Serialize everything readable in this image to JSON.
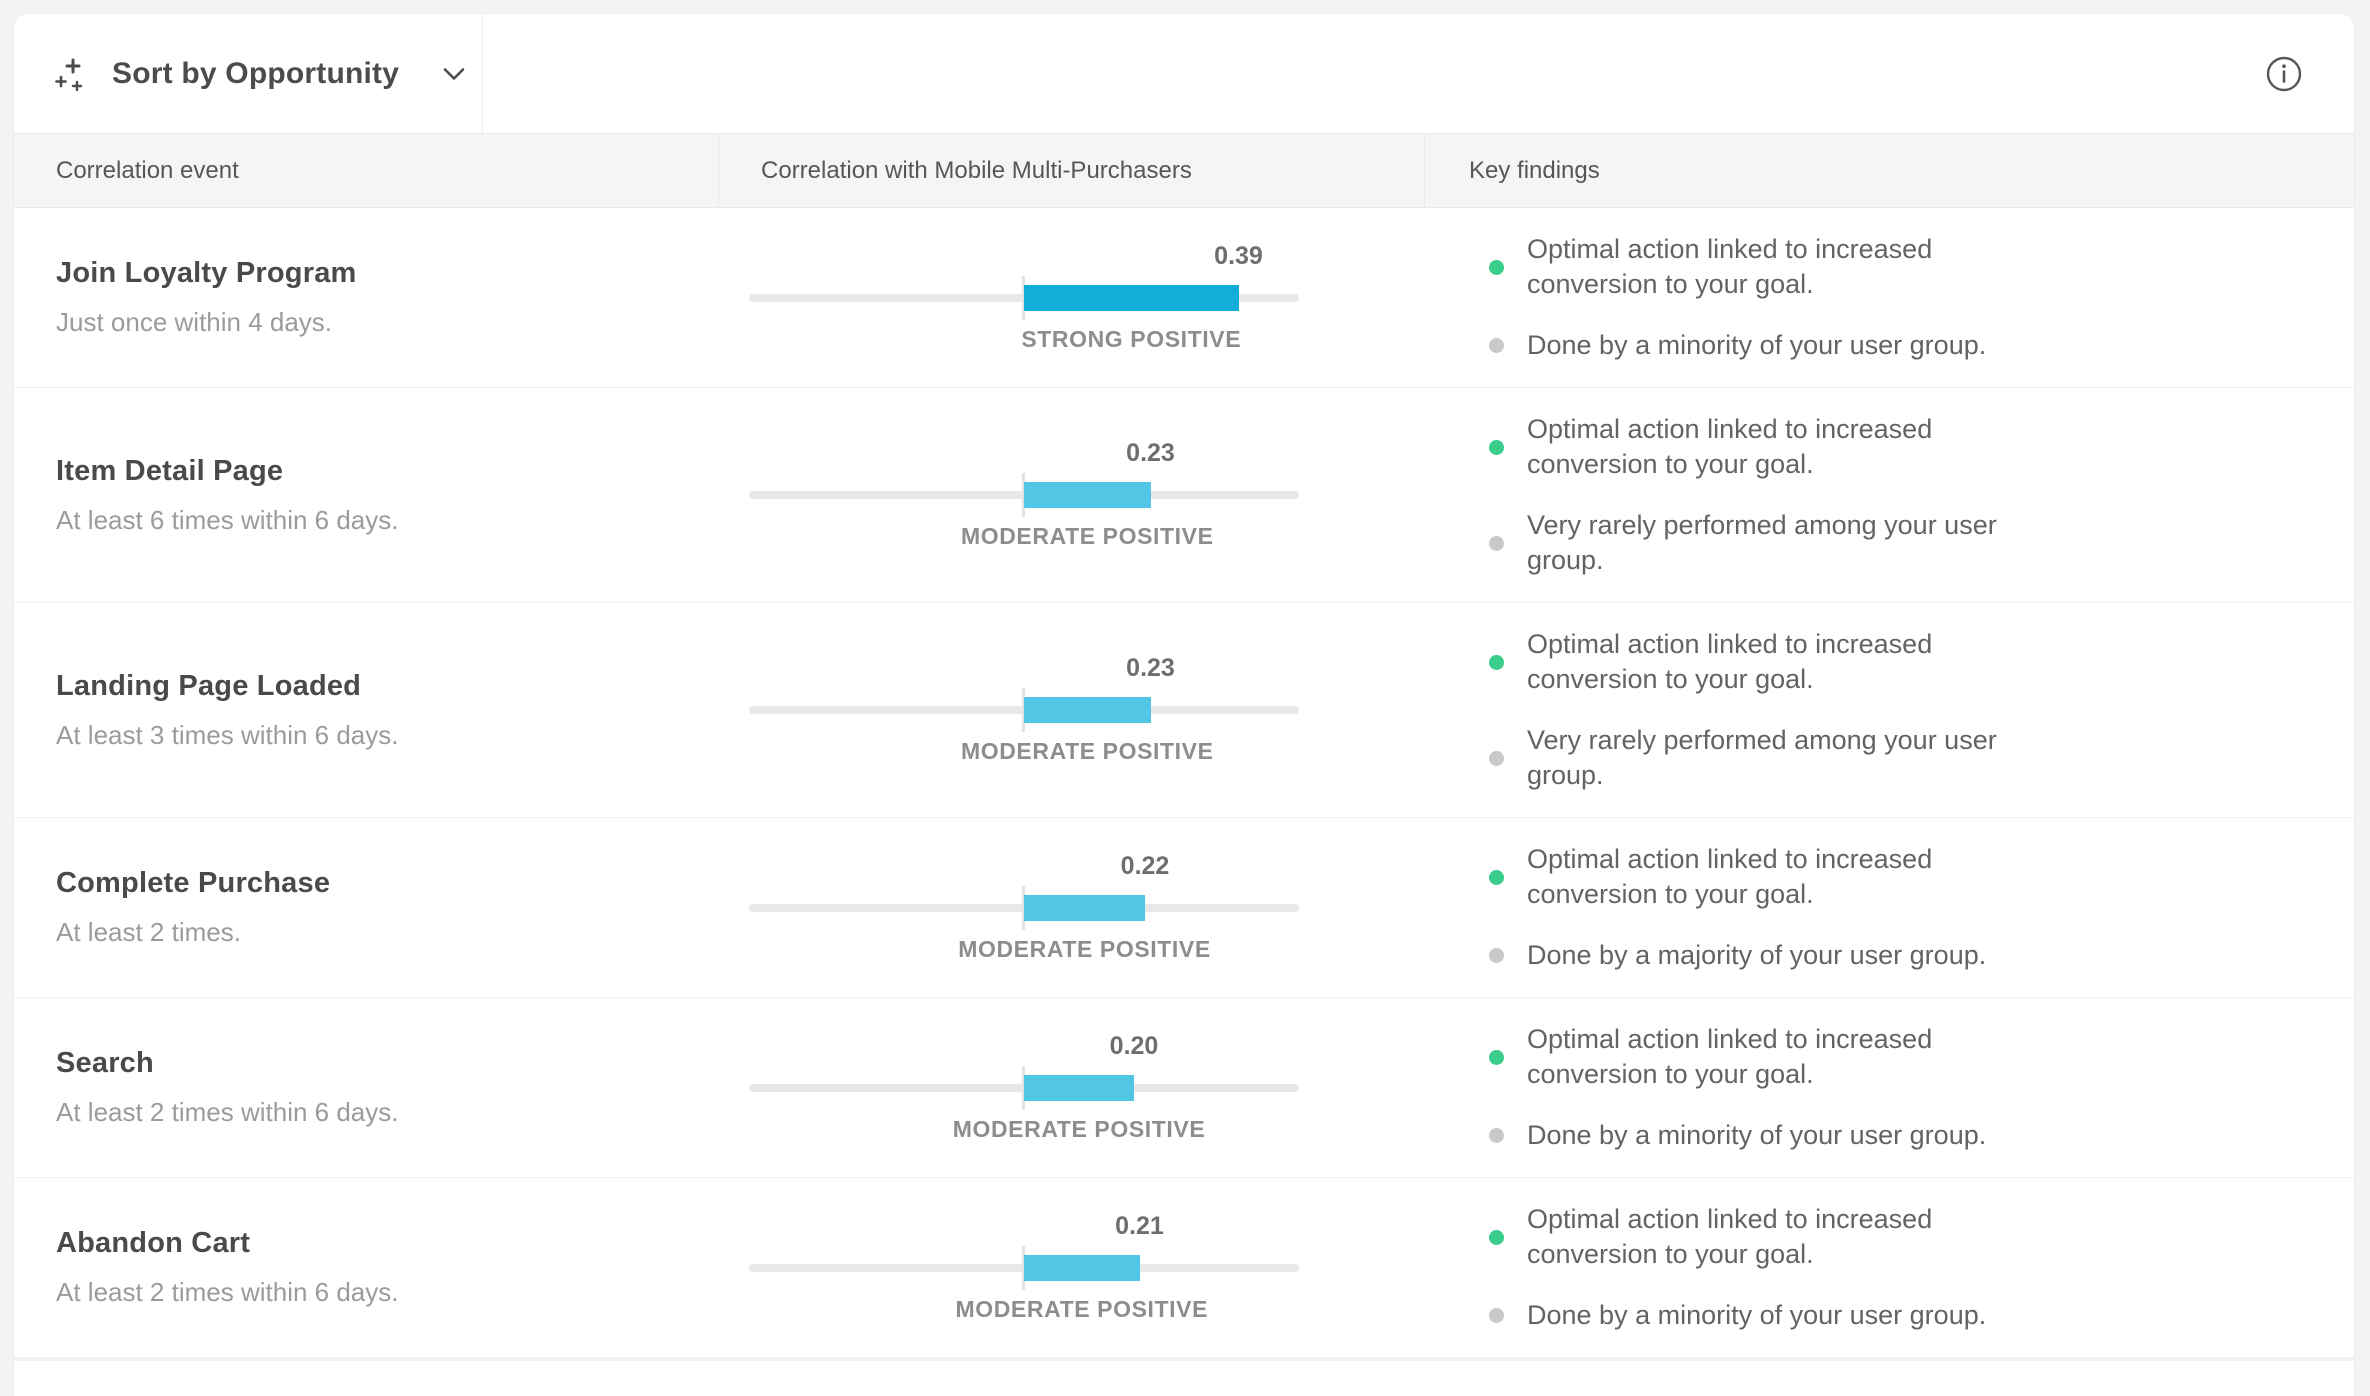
{
  "toolbar": {
    "sort_label": "Sort by Opportunity",
    "icons": {
      "sort": "sparkles-plus-icon",
      "dropdown": "chevron-down-icon",
      "info": "info-circle-icon"
    }
  },
  "table": {
    "columns": [
      "Correlation event",
      "Correlation with Mobile Multi-Purchasers",
      "Key findings"
    ],
    "rows": [
      {
        "event": "Join Loyalty Program",
        "frequency": "Just once within 4 days.",
        "correlation": {
          "value": "0.39",
          "numeric": 0.39,
          "scale_max": 0.5,
          "strength": "STRONG POSITIVE",
          "color": "#10aed9"
        },
        "findings": [
          {
            "text": "Optimal action linked to increased conversion to your goal.",
            "dot": "green"
          },
          {
            "text": "Done by a minority of your user group.",
            "dot": "gray"
          }
        ]
      },
      {
        "event": "Item Detail Page",
        "frequency": "At least 6 times within 6 days.",
        "correlation": {
          "value": "0.23",
          "numeric": 0.23,
          "scale_max": 0.5,
          "strength": "MODERATE POSITIVE",
          "color": "#52c6e5"
        },
        "findings": [
          {
            "text": "Optimal action linked to increased conversion to your goal.",
            "dot": "green"
          },
          {
            "text": "Very rarely performed among your user group.",
            "dot": "gray"
          }
        ]
      },
      {
        "event": "Landing Page Loaded",
        "frequency": "At least 3 times within 6 days.",
        "correlation": {
          "value": "0.23",
          "numeric": 0.23,
          "scale_max": 0.5,
          "strength": "MODERATE POSITIVE",
          "color": "#52c6e5"
        },
        "findings": [
          {
            "text": "Optimal action linked to increased conversion to your goal.",
            "dot": "green"
          },
          {
            "text": "Very rarely performed among your user group.",
            "dot": "gray"
          }
        ]
      },
      {
        "event": "Complete Purchase",
        "frequency": "At least 2 times.",
        "correlation": {
          "value": "0.22",
          "numeric": 0.22,
          "scale_max": 0.5,
          "strength": "MODERATE POSITIVE",
          "color": "#52c6e5"
        },
        "findings": [
          {
            "text": "Optimal action linked to increased conversion to your goal.",
            "dot": "green"
          },
          {
            "text": "Done by a majority of your user group.",
            "dot": "gray"
          }
        ]
      },
      {
        "event": "Search",
        "frequency": "At least 2 times within 6 days.",
        "correlation": {
          "value": "0.20",
          "numeric": 0.2,
          "scale_max": 0.5,
          "strength": "MODERATE POSITIVE",
          "color": "#52c6e5"
        },
        "findings": [
          {
            "text": "Optimal action linked to increased conversion to your goal.",
            "dot": "green"
          },
          {
            "text": "Done by a minority of your user group.",
            "dot": "gray"
          }
        ]
      },
      {
        "event": "Abandon Cart",
        "frequency": "At least 2 times within 6 days.",
        "correlation": {
          "value": "0.21",
          "numeric": 0.21,
          "scale_max": 0.5,
          "strength": "MODERATE POSITIVE",
          "color": "#52c6e5"
        },
        "findings": [
          {
            "text": "Optimal action linked to increased conversion to your goal.",
            "dot": "green"
          },
          {
            "text": "Done by a minority of your user group.",
            "dot": "gray"
          }
        ]
      }
    ]
  },
  "colors": {
    "strong_bar": "#10aed9",
    "moderate_bar": "#52c6e5",
    "bar_track": "#e8e8e8",
    "dots": {
      "green": "#3bcd8c",
      "gray": "#c9c9c9"
    },
    "header_bg": "#f5f5f6",
    "page_bg": "#f3f3f4"
  }
}
